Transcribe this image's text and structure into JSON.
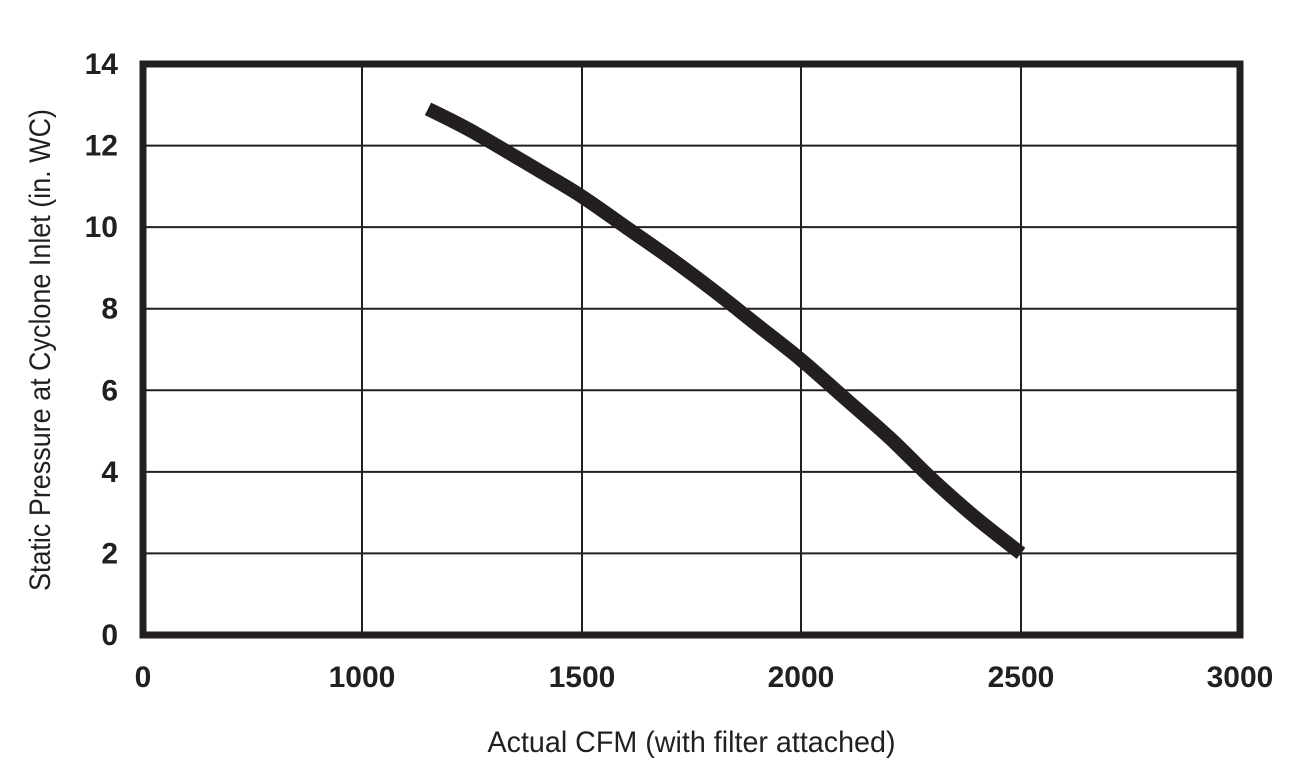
{
  "chart_data": {
    "type": "line",
    "title": "",
    "xlabel": "Actual CFM (with filter attached)",
    "ylabel": "Static Pressure at Cyclone Inlet (in. WC)",
    "x_ticks": [
      "0",
      "1000",
      "1500",
      "2000",
      "2500",
      "3000"
    ],
    "y_ticks": [
      "0",
      "2",
      "4",
      "6",
      "8",
      "10",
      "12",
      "14"
    ],
    "grid": true,
    "legend": "none",
    "colors": {
      "line": "#231f20",
      "grid": "#231f20",
      "frame": "#231f20",
      "text": "#231f20"
    },
    "series": [
      {
        "x": [
          1150,
          1250,
          1400,
          1500,
          1600,
          1700,
          1800,
          1900,
          2000,
          2100,
          2200,
          2300,
          2400,
          2500
        ],
        "y": [
          12.9,
          12.35,
          11.4,
          10.75,
          10.0,
          9.25,
          8.45,
          7.6,
          6.75,
          5.8,
          4.85,
          3.8,
          2.85,
          2.0
        ]
      }
    ]
  }
}
